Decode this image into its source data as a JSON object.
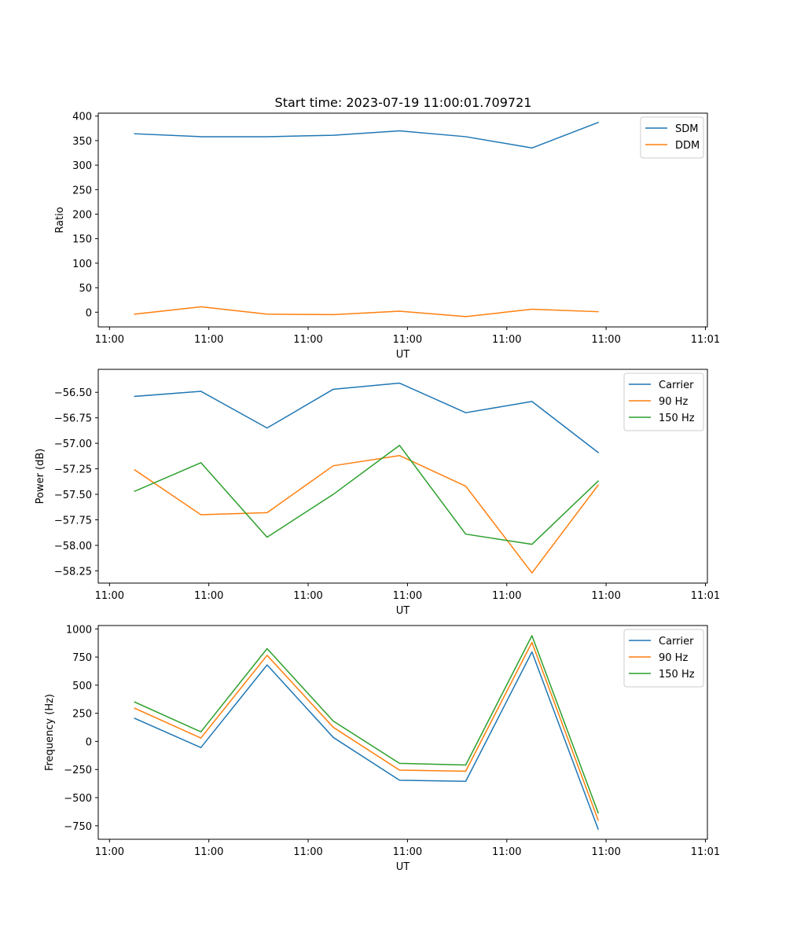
{
  "figure_title": "Start time: 2023-07-19 11:00:01.709721",
  "colors": {
    "blue": "#1f77b4",
    "orange": "#ff7f0e",
    "green": "#2ca02c"
  },
  "chart_data": [
    {
      "type": "line",
      "title": "Start time: 2023-07-19 11:00:01.709721",
      "xlabel": "UT",
      "ylabel": "Ratio",
      "x": [
        1,
        2,
        3,
        4,
        5,
        6,
        7,
        8
      ],
      "xlim": [
        0.45,
        9.65
      ],
      "xticks": [
        0.62,
        2.12,
        3.62,
        5.12,
        6.62,
        8.12,
        9.62
      ],
      "xtick_labels": [
        "11:00",
        "11:00",
        "11:00",
        "11:00",
        "11:00",
        "11:00",
        "11:01"
      ],
      "ylim": [
        -30,
        406
      ],
      "yticks": [
        0,
        50,
        100,
        150,
        200,
        250,
        300,
        350,
        400
      ],
      "ytick_labels": [
        "0",
        "50",
        "100",
        "150",
        "200",
        "250",
        "300",
        "350",
        "400"
      ],
      "legend_position": "top-right",
      "series": [
        {
          "name": "SDM",
          "color": "#1f77b4",
          "values": [
            364,
            358,
            358,
            361,
            370,
            358,
            335,
            387
          ]
        },
        {
          "name": "DDM",
          "color": "#ff7f0e",
          "values": [
            -4,
            11,
            -4,
            -5,
            2,
            -9,
            6,
            1
          ]
        }
      ]
    },
    {
      "type": "line",
      "title": "",
      "xlabel": "UT",
      "ylabel": "Power (dB)",
      "x": [
        1,
        2,
        3,
        4,
        5,
        6,
        7,
        8
      ],
      "xlim": [
        0.45,
        9.65
      ],
      "xticks": [
        0.62,
        2.12,
        3.62,
        5.12,
        6.62,
        8.12,
        9.62
      ],
      "xtick_labels": [
        "11:00",
        "11:00",
        "11:00",
        "11:00",
        "11:00",
        "11:00",
        "11:01"
      ],
      "ylim": [
        -58.37,
        -56.275
      ],
      "yticks": [
        -58.25,
        -58.0,
        -57.75,
        -57.5,
        -57.25,
        -57.0,
        -56.75,
        -56.5
      ],
      "ytick_labels": [
        "−58.25",
        "−58.00",
        "−57.75",
        "−57.50",
        "−57.25",
        "−57.00",
        "−56.75",
        "−56.50"
      ],
      "legend_position": "top-right",
      "series": [
        {
          "name": "Carrier",
          "color": "#1f77b4",
          "values": [
            -56.54,
            -56.49,
            -56.85,
            -56.47,
            -56.41,
            -56.7,
            -56.59,
            -57.09
          ]
        },
        {
          "name": "90 Hz",
          "color": "#ff7f0e",
          "values": [
            -57.26,
            -57.7,
            -57.68,
            -57.22,
            -57.12,
            -57.42,
            -58.27,
            -57.41
          ]
        },
        {
          "name": "150 Hz",
          "color": "#2ca02c",
          "values": [
            -57.47,
            -57.19,
            -57.92,
            -57.5,
            -57.02,
            -57.89,
            -57.99,
            -57.37
          ]
        }
      ]
    },
    {
      "type": "line",
      "title": "",
      "xlabel": "UT",
      "ylabel": "Frequency (Hz)",
      "x": [
        1,
        2,
        3,
        4,
        5,
        6,
        7,
        8
      ],
      "xlim": [
        0.45,
        9.65
      ],
      "xticks": [
        0.62,
        2.12,
        3.62,
        5.12,
        6.62,
        8.12,
        9.62
      ],
      "xtick_labels": [
        "11:00",
        "11:00",
        "11:00",
        "11:00",
        "11:00",
        "11:00",
        "11:01"
      ],
      "ylim": [
        -870,
        1030
      ],
      "yticks": [
        -750,
        -500,
        -250,
        0,
        250,
        500,
        750,
        1000
      ],
      "ytick_labels": [
        "−750",
        "−500",
        "−250",
        "0",
        "250",
        "500",
        "750",
        "1000"
      ],
      "legend_position": "top-right",
      "series": [
        {
          "name": "Carrier",
          "color": "#1f77b4",
          "values": [
            205,
            -55,
            680,
            35,
            -345,
            -355,
            795,
            -780
          ]
        },
        {
          "name": "90 Hz",
          "color": "#ff7f0e",
          "values": [
            295,
            30,
            765,
            125,
            -255,
            -265,
            880,
            -700
          ]
        },
        {
          "name": "150 Hz",
          "color": "#2ca02c",
          "values": [
            350,
            85,
            825,
            180,
            -195,
            -210,
            940,
            -635
          ]
        }
      ]
    }
  ]
}
